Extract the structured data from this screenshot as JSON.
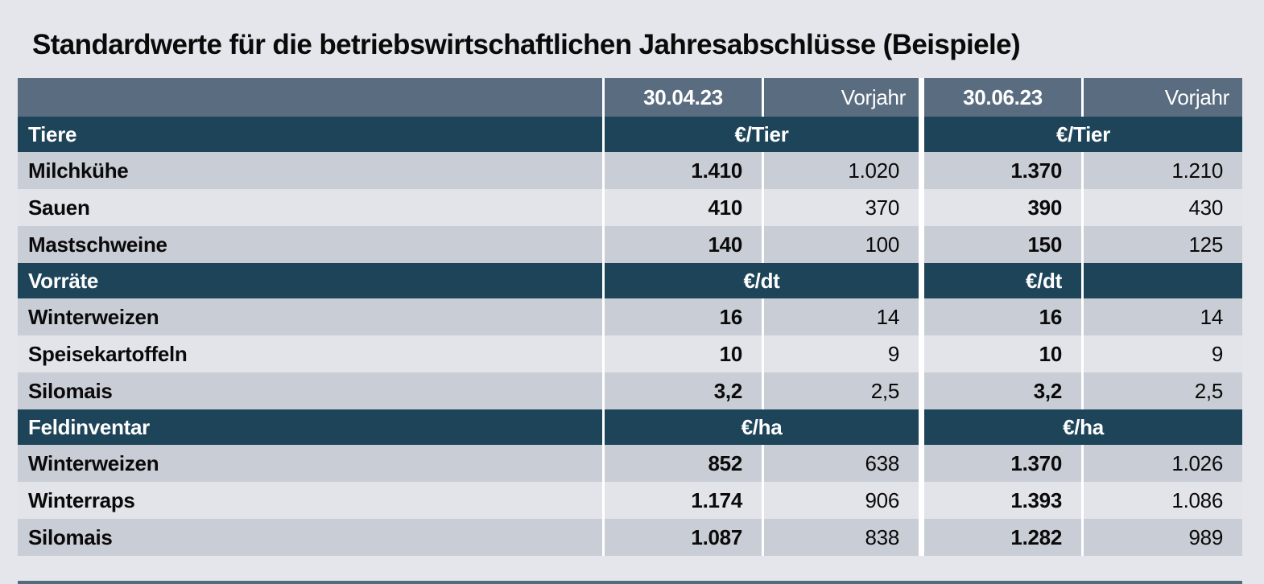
{
  "title": "Standardwerte für die betriebswirtschaftlichen Jahresabschlüsse (Beispiele)",
  "table": {
    "columns": [
      "30.04.23",
      "Vorjahr",
      "30.06.23",
      "Vorjahr"
    ],
    "sections": [
      {
        "name": "Tiere",
        "unit": "€/Tier",
        "rows": [
          {
            "label": "Milchkühe",
            "values": [
              "1.410",
              "1.020",
              "1.370",
              "1.210"
            ]
          },
          {
            "label": "Sauen",
            "values": [
              "410",
              "370",
              "390",
              "430"
            ]
          },
          {
            "label": "Mastschweine",
            "values": [
              "140",
              "100",
              "150",
              "125"
            ]
          }
        ]
      },
      {
        "name": "Vorräte",
        "unit": "€/dt",
        "rows": [
          {
            "label": "Winterweizen",
            "values": [
              "16",
              "14",
              "16",
              "14"
            ]
          },
          {
            "label": "Speisekartoffeln",
            "values": [
              "10",
              "9",
              "10",
              "9"
            ]
          },
          {
            "label": "Silomais",
            "values": [
              "3,2",
              "2,5",
              "3,2",
              "2,5"
            ]
          }
        ]
      },
      {
        "name": "Feldinventar",
        "unit": "€/ha",
        "rows": [
          {
            "label": "Winterweizen",
            "values": [
              "852",
              "638",
              "1.370",
              "1.026"
            ]
          },
          {
            "label": "Winterraps",
            "values": [
              "1.174",
              "906",
              "1.393",
              "1.086"
            ]
          },
          {
            "label": "Silomais",
            "values": [
              "1.087",
              "838",
              "1.282",
              "989"
            ]
          }
        ]
      }
    ]
  },
  "colors": {
    "page-bg": "#e5e6eb",
    "slate": "#5a6c7f",
    "teal": "#1e4459",
    "row-dark": "#c9cdd6",
    "row-light": "#e3e4ea",
    "white": "#ffffff",
    "ink": "#0a0a0a"
  }
}
